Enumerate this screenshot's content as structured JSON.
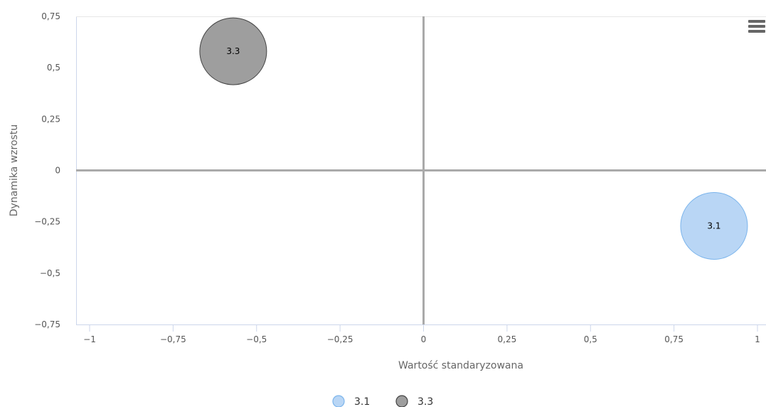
{
  "chart_data": {
    "type": "scatter",
    "subtype": "bubble",
    "xlabel": "Wartość standaryzowana",
    "ylabel": "Dynamika wzrostu",
    "xlim": [
      -1,
      1
    ],
    "ylim": [
      -0.75,
      0.75
    ],
    "x_ticks": [
      "−1",
      "−0,75",
      "−0,5",
      "−0,25",
      "0",
      "0,25",
      "0,5",
      "0,75",
      "1"
    ],
    "y_ticks": [
      "0,75",
      "0,5",
      "0,25",
      "0",
      "−0,25",
      "−0,5",
      "−0,75"
    ],
    "series": [
      {
        "name": "3.1",
        "points": [
          {
            "x": 0.87,
            "y": -0.27,
            "label": "3.1"
          }
        ],
        "color": "#b9d6f5",
        "stroke": "#7cb5ec"
      },
      {
        "name": "3.3",
        "points": [
          {
            "x": -0.57,
            "y": 0.58,
            "label": "3.3"
          }
        ],
        "color": "#9e9e9e",
        "stroke": "#434343"
      }
    ],
    "grid": false,
    "legend_position": "bottom-center",
    "menu_icon": "hamburger-menu-icon"
  }
}
